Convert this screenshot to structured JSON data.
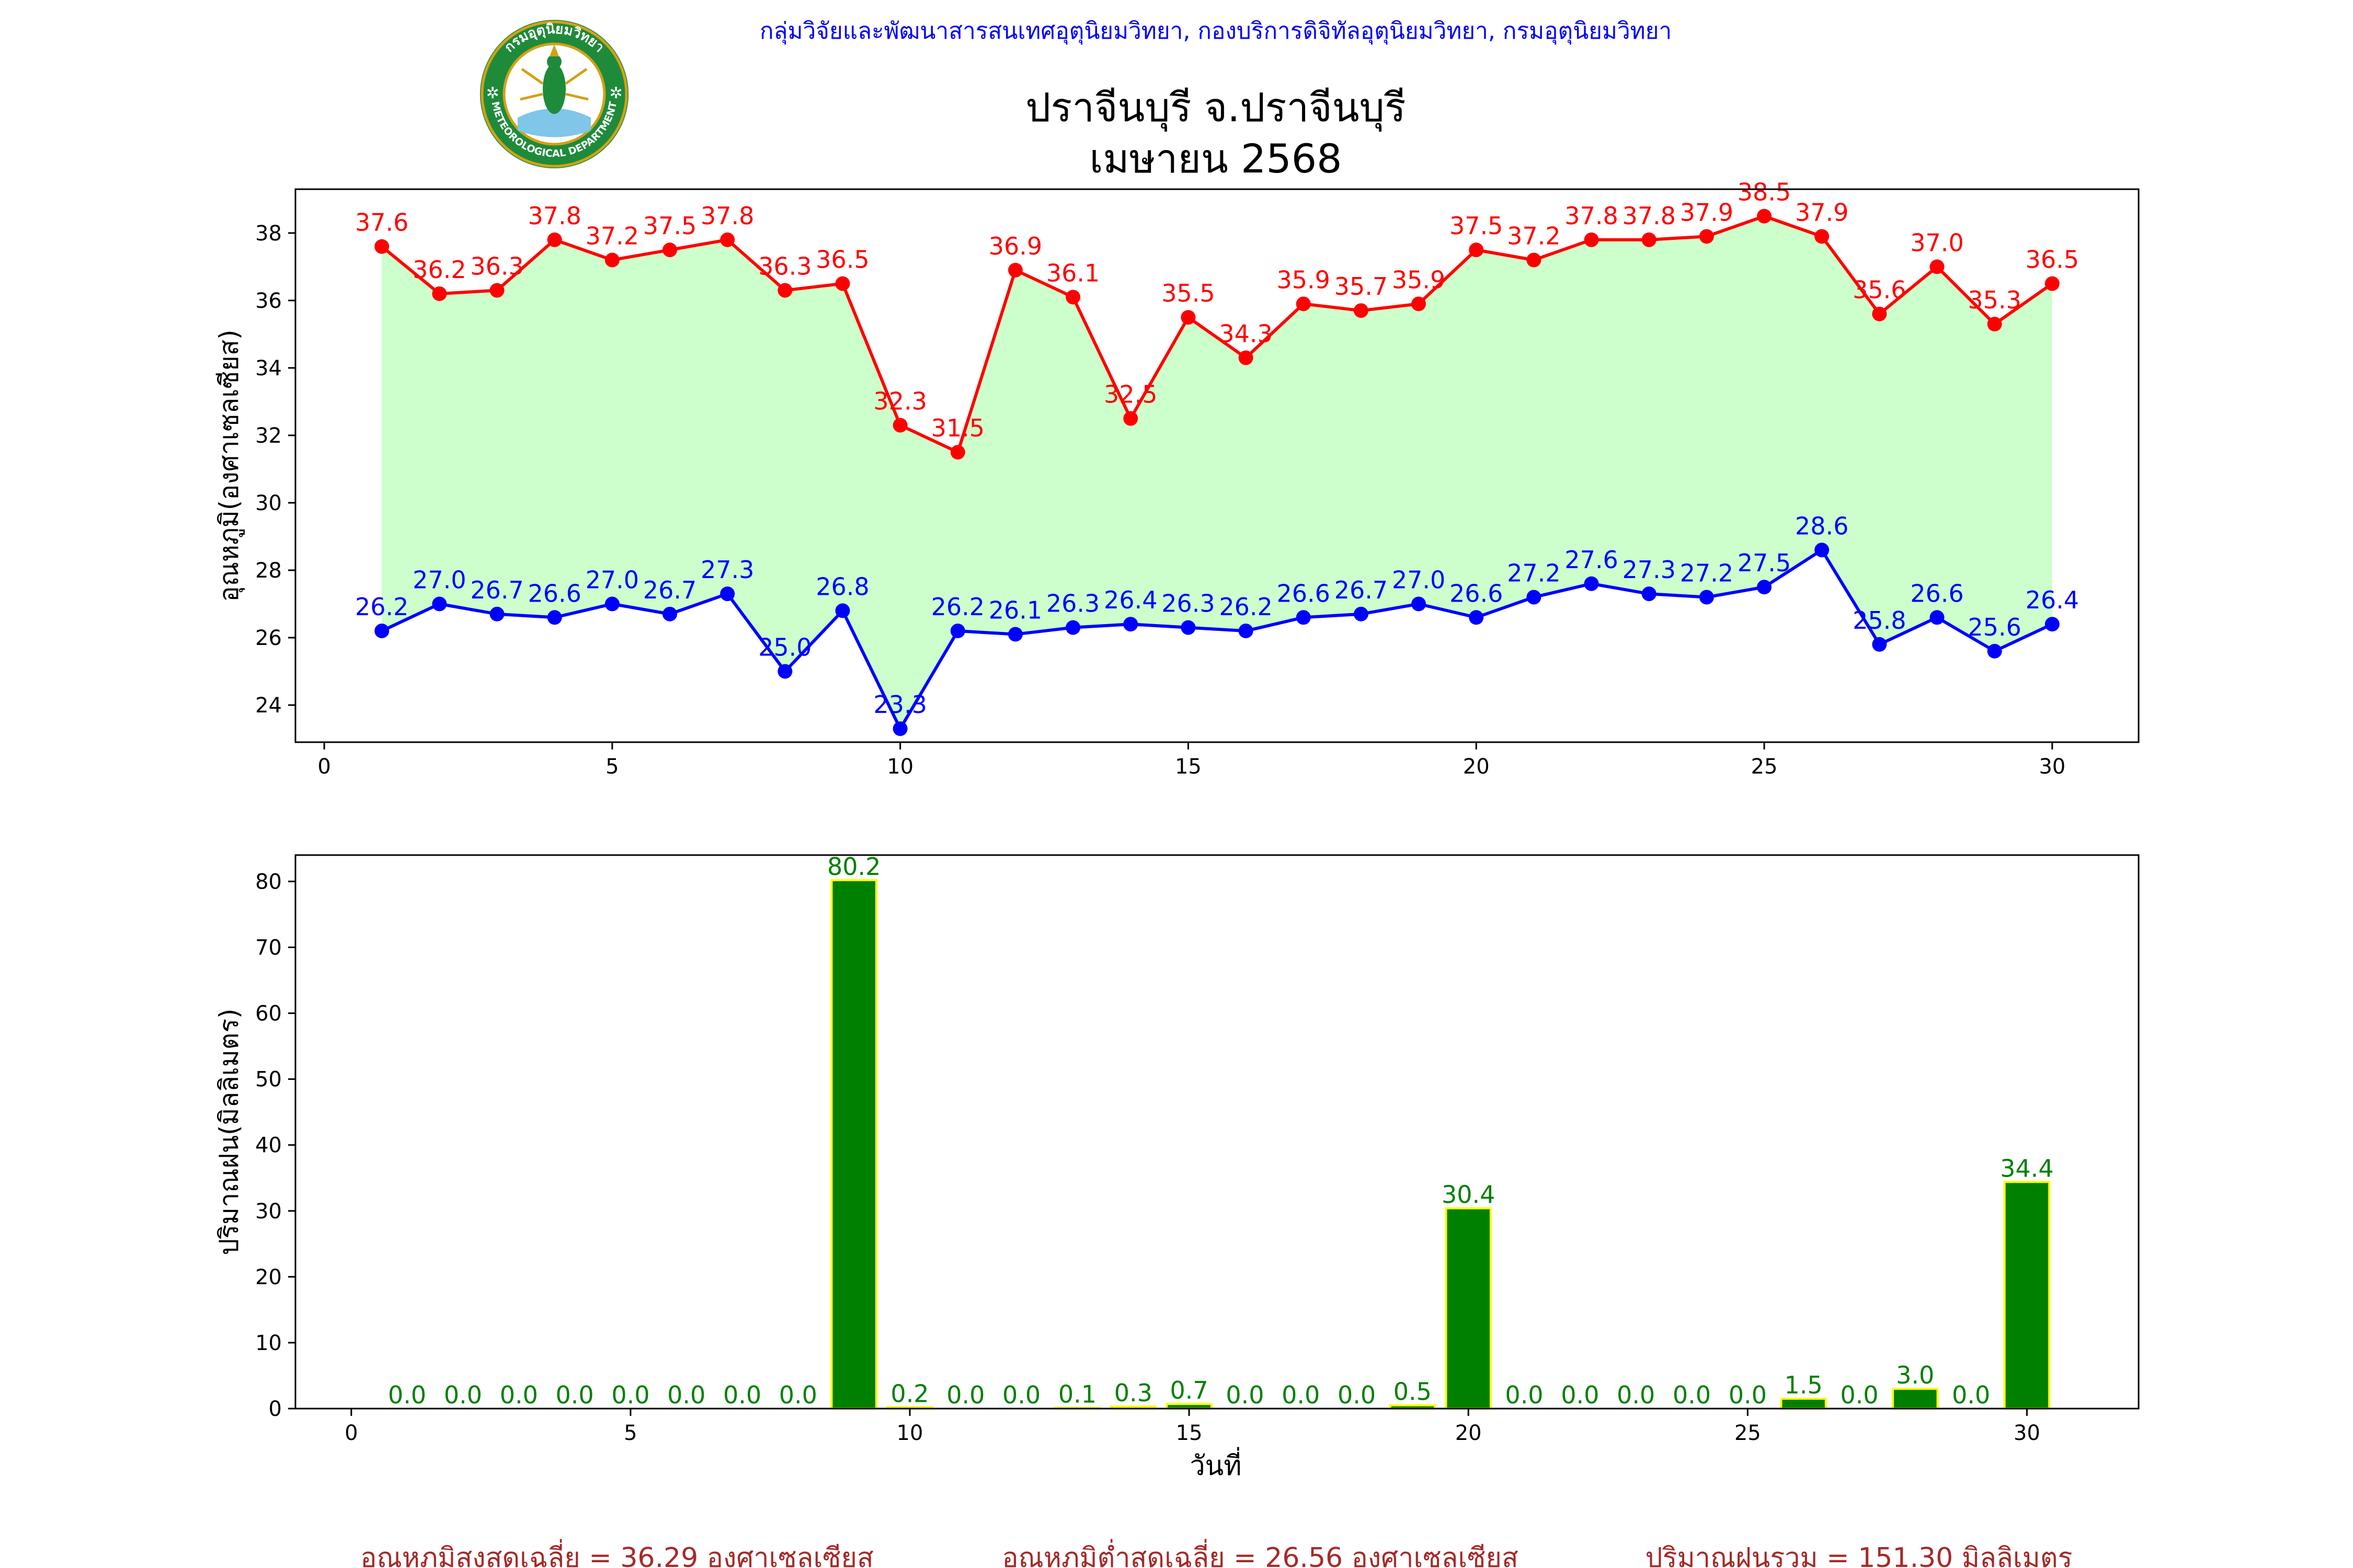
{
  "header": {
    "organization": "กลุ่มวิจัยและพัฒนาสารสนเทศอุตุนิยมวิทยา, กองบริการดิจิทัลอุตุนิยมวิทยา, กรมอุตุนิยมวิทยา",
    "title_line1": "ปราจีนบุรี จ.ปราจีนบุรี",
    "title_line2": "เมษายน 2568",
    "logo_icon": "meteorological-department-seal-icon",
    "logo_text_top": "กรมอุตุนิยมวิทยา",
    "logo_text_bottom": "METEOROLOGICAL DEPARTMENT"
  },
  "colors": {
    "max_temp": "#ff0000",
    "min_temp": "#0000ff",
    "temp_fill": "#ccffcc",
    "rain_bar": "#008000",
    "rain_edge": "#ffff00",
    "summary_text": "#a52a2a",
    "header_text": "#0000ff"
  },
  "chart_data": [
    {
      "type": "line",
      "ylabel": "อุณหภูมิ(องศาเซลเซียส)",
      "x": [
        1,
        2,
        3,
        4,
        5,
        6,
        7,
        8,
        9,
        10,
        11,
        12,
        13,
        14,
        15,
        16,
        17,
        18,
        19,
        20,
        21,
        22,
        23,
        24,
        25,
        26,
        27,
        28,
        29,
        30
      ],
      "xlim": [
        -0.5,
        31.5
      ],
      "ylim": [
        22.9,
        39.3
      ],
      "xticks": [
        0,
        5,
        10,
        15,
        20,
        25,
        30
      ],
      "yticks": [
        24,
        26,
        28,
        30,
        32,
        34,
        36,
        38
      ],
      "grid": false,
      "series": [
        {
          "values": [
            37.6,
            36.2,
            36.3,
            37.8,
            37.2,
            37.5,
            37.8,
            36.3,
            36.5,
            32.3,
            31.5,
            36.9,
            36.1,
            32.5,
            35.5,
            34.3,
            35.9,
            35.7,
            35.9,
            37.5,
            37.2,
            37.8,
            37.8,
            37.9,
            38.5,
            37.9,
            35.6,
            37.0,
            35.3,
            36.5
          ]
        },
        {
          "values": [
            26.2,
            27.0,
            26.7,
            26.6,
            27.0,
            26.7,
            27.3,
            25.0,
            26.8,
            23.3,
            26.2,
            26.1,
            26.3,
            26.4,
            26.3,
            26.2,
            26.6,
            26.7,
            27.0,
            26.6,
            27.2,
            27.6,
            27.3,
            27.2,
            27.5,
            28.6,
            25.8,
            26.6,
            25.6,
            26.4
          ]
        }
      ]
    },
    {
      "type": "bar",
      "ylabel": "ปริมาณฝน(มิลลิเมตร)",
      "xlabel": "วันที่",
      "x": [
        1,
        2,
        3,
        4,
        5,
        6,
        7,
        8,
        9,
        10,
        11,
        12,
        13,
        14,
        15,
        16,
        17,
        18,
        19,
        20,
        21,
        22,
        23,
        24,
        25,
        26,
        27,
        28,
        29,
        30
      ],
      "values": [
        0.0,
        0.0,
        0.0,
        0.0,
        0.0,
        0.0,
        0.0,
        0.0,
        80.2,
        0.2,
        0.0,
        0.0,
        0.1,
        0.3,
        0.7,
        0.0,
        0.0,
        0.0,
        0.5,
        30.4,
        0.0,
        0.0,
        0.0,
        0.0,
        0.0,
        1.5,
        0.0,
        3.0,
        0.0,
        34.4
      ],
      "xlim": [
        -1,
        32
      ],
      "ylim": [
        0,
        84
      ],
      "xticks": [
        0,
        5,
        10,
        15,
        20,
        25,
        30
      ],
      "yticks": [
        0,
        10,
        20,
        30,
        40,
        50,
        60,
        70,
        80
      ],
      "grid": false
    }
  ],
  "summary": {
    "avg_max": "อุณหภูมิสูงสุดเฉลี่ย = 36.29 องศาเซลเซียส",
    "avg_min": "อุณหภูมิต่ำสุดเฉลี่ย = 26.56 องศาเซลเซียส",
    "total_rain": "ปริมาณฝนรวม = 151.30 มิลลิเมตร"
  }
}
